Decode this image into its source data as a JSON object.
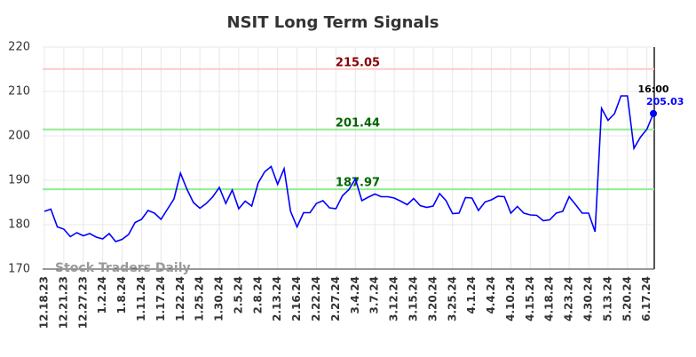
{
  "chart_data": {
    "type": "line",
    "title": "NSIT Long Term Signals",
    "categories": [
      "12.18.23",
      null,
      null,
      "12.21.23",
      null,
      null,
      "12.27.23",
      null,
      null,
      "1.2.24",
      null,
      null,
      "1.8.24",
      null,
      null,
      "1.11.24",
      null,
      null,
      "1.17.24",
      null,
      null,
      "1.22.24",
      null,
      null,
      "1.25.24",
      null,
      null,
      "1.30.24",
      null,
      null,
      "2.5.24",
      null,
      null,
      "2.8.24",
      null,
      null,
      "2.13.24",
      null,
      null,
      "2.16.24",
      null,
      null,
      "2.22.24",
      null,
      null,
      "2.27.24",
      null,
      null,
      "3.4.24",
      null,
      null,
      "3.7.24",
      null,
      null,
      "3.12.24",
      null,
      null,
      "3.15.24",
      null,
      null,
      "3.20.24",
      null,
      null,
      "3.25.24",
      null,
      null,
      "4.1.24",
      null,
      null,
      "4.4.24",
      null,
      null,
      "4.10.24",
      null,
      null,
      "4.15.24",
      null,
      null,
      "4.18.24",
      null,
      null,
      "4.23.24",
      null,
      null,
      "4.30.24",
      null,
      null,
      "5.13.24",
      null,
      null,
      "5.20.24",
      null,
      null,
      "6.17.24",
      null
    ],
    "values": [
      183,
      183.5,
      179.5,
      179,
      177.3,
      178.2,
      177.5,
      178,
      177.2,
      176.8,
      178,
      176.2,
      176.7,
      177.8,
      180.5,
      181.2,
      183.2,
      182.6,
      181.2,
      183.5,
      185.8,
      191.6,
      188,
      185,
      183.7,
      184.8,
      186.3,
      188.4,
      184.8,
      187.8,
      183.6,
      185.3,
      184.2,
      189.4,
      191.9,
      193.1,
      189.1,
      192.6,
      183,
      179.5,
      182.7,
      182.7,
      184.8,
      185.4,
      183.8,
      183.6,
      186.5,
      187.9,
      190.3,
      185.4,
      186.2,
      186.9,
      186.3,
      186.3,
      186,
      185.3,
      184.5,
      185.9,
      184.3,
      183.9,
      184.2,
      187,
      185.4,
      182.5,
      182.6,
      186.1,
      186,
      183.2,
      185.1,
      185.6,
      186.4,
      186.3,
      182.6,
      184.1,
      182.6,
      182.2,
      182.1,
      180.9,
      181.1,
      182.6,
      183,
      186.3,
      184.5,
      182.6,
      182.6,
      178.4,
      206.2,
      203.5,
      205,
      209,
      209,
      197.2,
      199.7,
      201.5,
      205.03
    ],
    "color": "#0000ff",
    "ylim": [
      170,
      220
    ],
    "yticks": [
      170,
      180,
      190,
      200,
      210,
      220
    ],
    "grid": true,
    "hlines": [
      {
        "value": 215.05,
        "color": "#ffc8c8",
        "label_color": "#8b0000"
      },
      {
        "value": 201.44,
        "color": "#90ee90",
        "label_color": "#006400"
      },
      {
        "value": 187.97,
        "color": "#90ee90",
        "label_color": "#006400"
      }
    ],
    "last_time": "16:00",
    "watermark": "Stock Traders Daily"
  }
}
